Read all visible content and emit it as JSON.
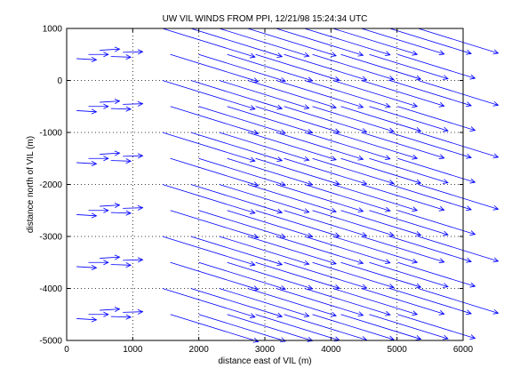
{
  "chart_data": {
    "type": "quiver",
    "title": "UW VIL WINDS FROM PPI,  12/21/98 15:24:34 UTC",
    "xlabel": "distance east of VIL (m)",
    "ylabel": "distance north of VIL (m)",
    "xlim": [
      0,
      6000
    ],
    "ylim": [
      -5000,
      1000
    ],
    "xticks": [
      0,
      1000,
      2000,
      3000,
      4000,
      5000,
      6000
    ],
    "yticks": [
      -5000,
      -4000,
      -3000,
      -2000,
      -1000,
      0,
      1000
    ],
    "grid": true,
    "grid_style": "dotted",
    "color": "#0000ff",
    "row_y": [
      500,
      -500,
      -1500,
      -2500,
      -3500,
      -4500
    ],
    "row_count": 6,
    "west_x": [
      150,
      330,
      500,
      670,
      850
    ],
    "east_x_start": 1450,
    "east_x_step": 430,
    "east_x_count": 10,
    "west_vector": [
      300,
      0
    ],
    "east_vector": [
      1400,
      -550
    ],
    "stagger": 500
  }
}
